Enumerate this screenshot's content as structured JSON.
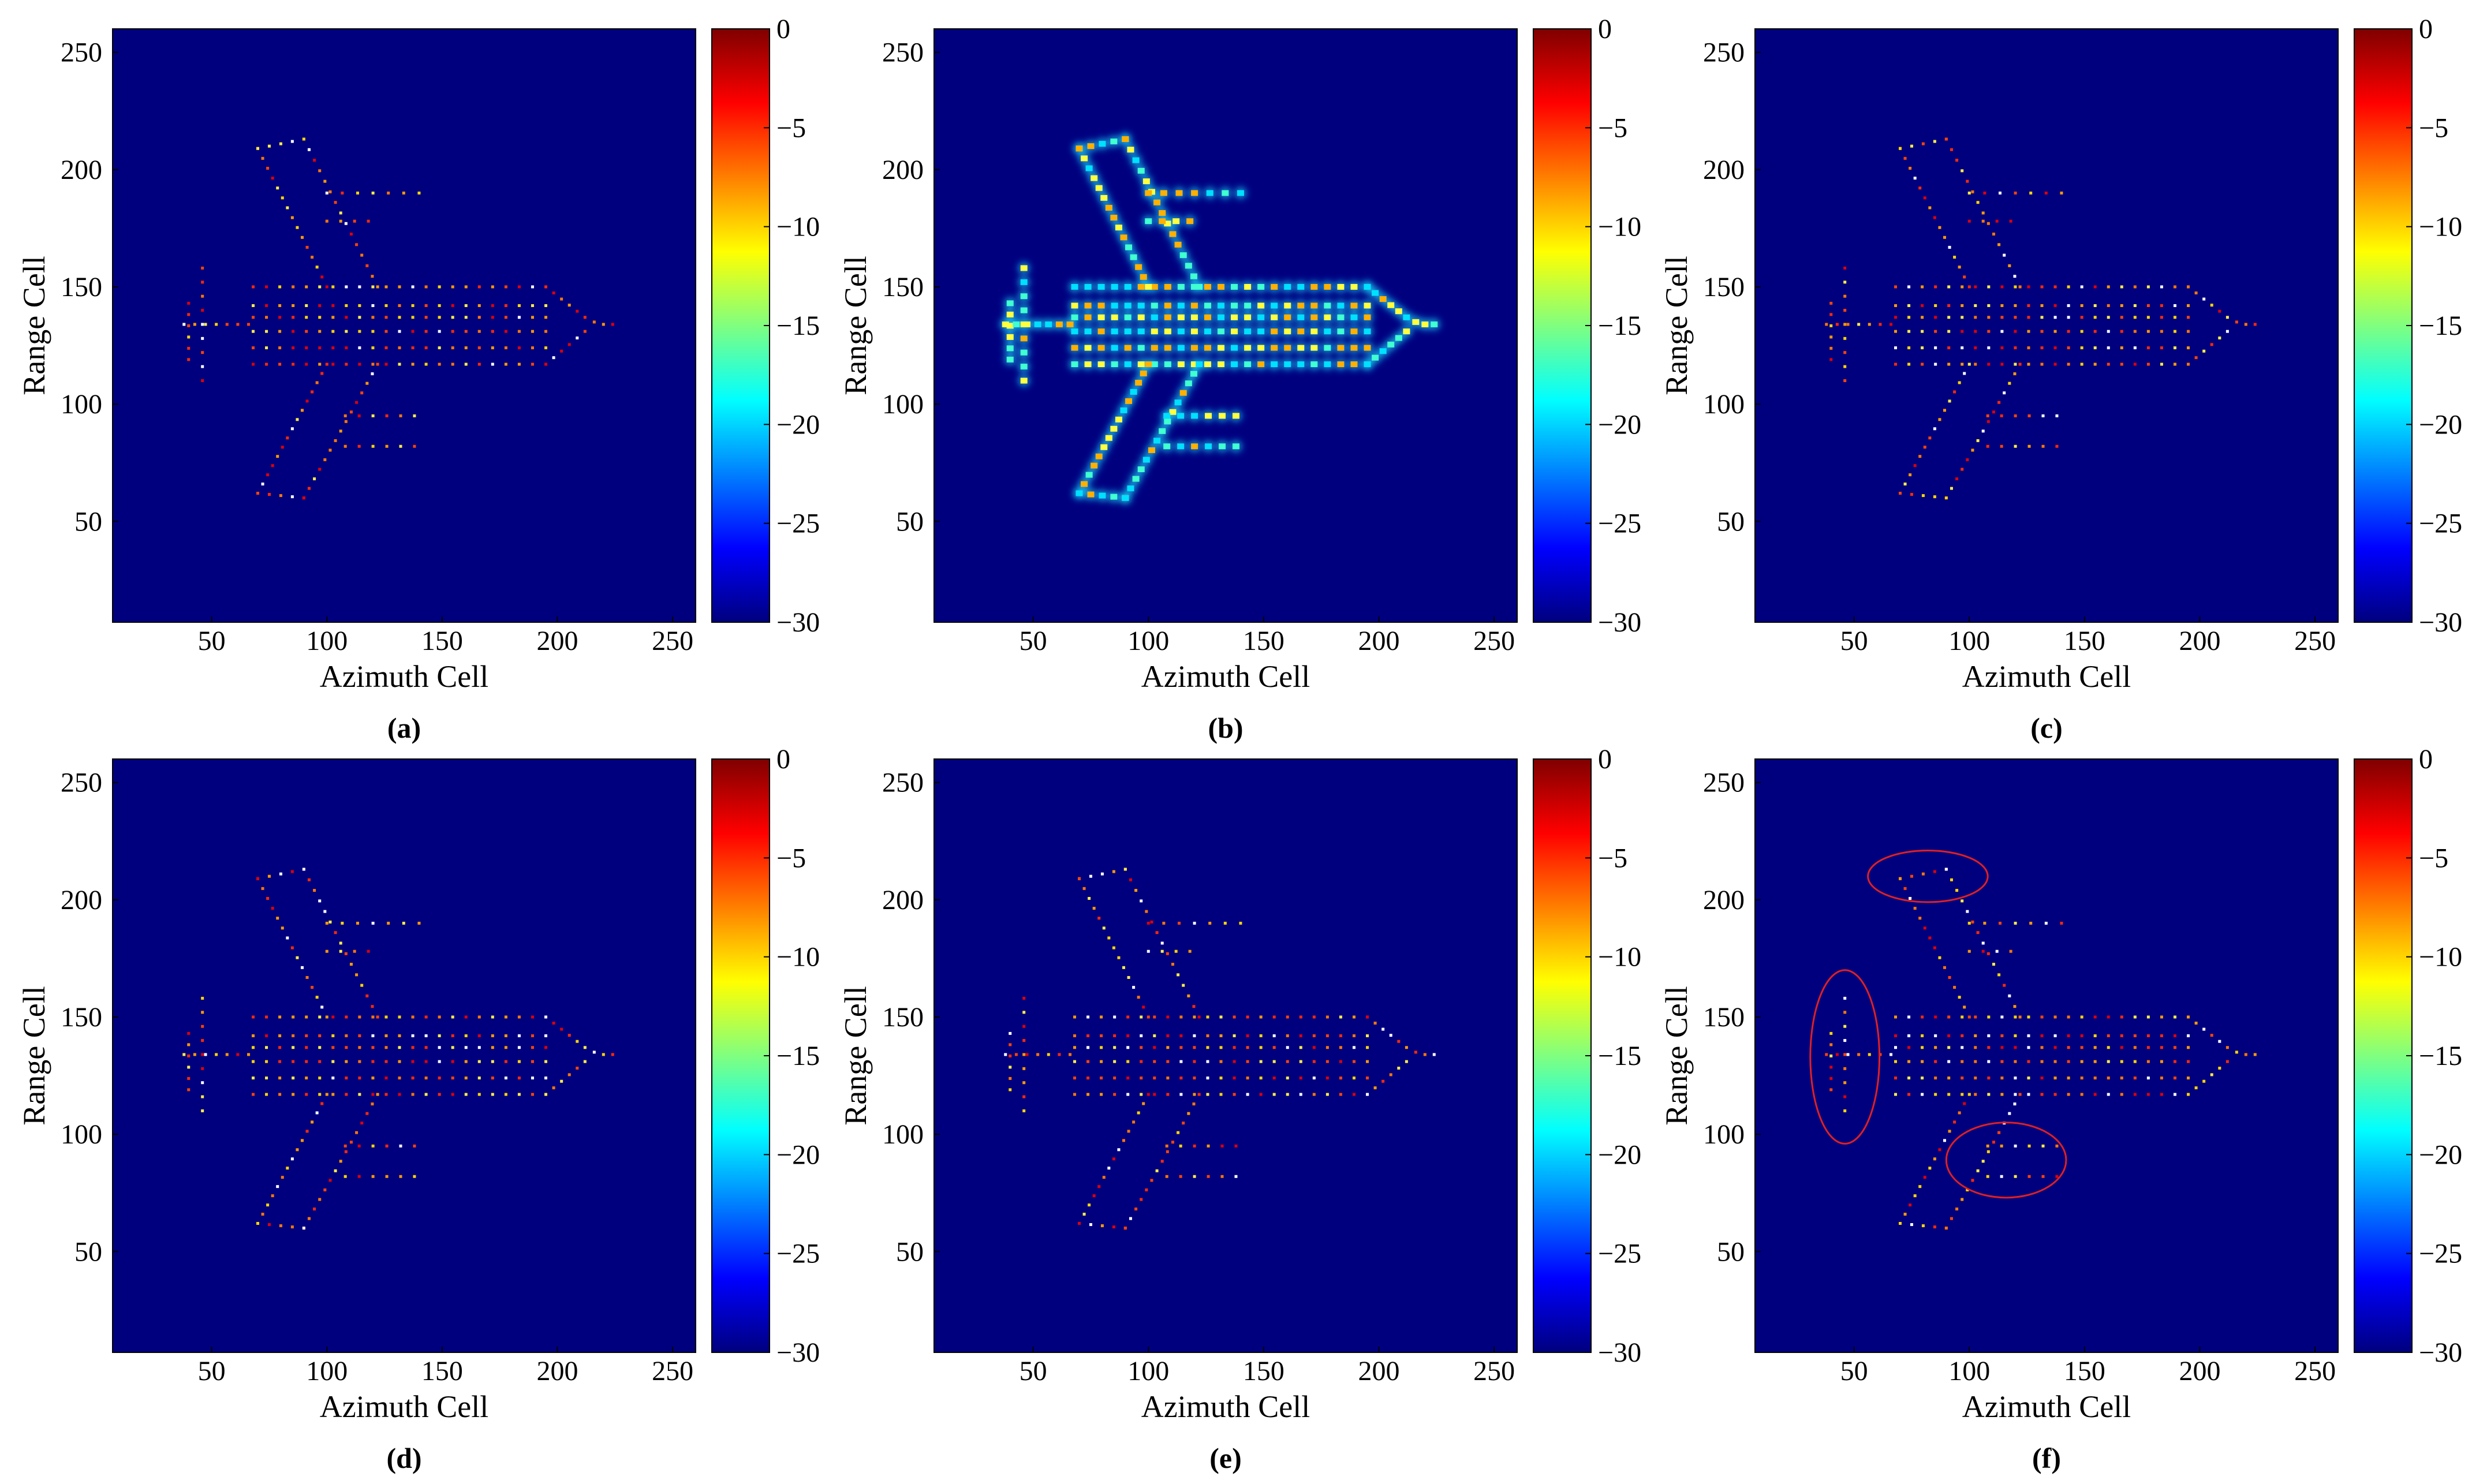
{
  "colors": {
    "background": "#00007f",
    "panel_b_glow": "#1a3fd0",
    "ellipse": "#e02020",
    "colormap_stops": [
      "#00007f",
      "#0000ff",
      "#00ffff",
      "#ffff00",
      "#ff0000",
      "#7f0000"
    ]
  },
  "chart_data": [
    {
      "type": "heatmap",
      "label": "(a)",
      "xlabel": "Azimuth Cell",
      "ylabel": "Range Cell",
      "xlim": [
        7,
        260
      ],
      "ylim": [
        7,
        260
      ],
      "xticks": [
        "50",
        "100",
        "150",
        "200",
        "250"
      ],
      "yticks": [
        "50",
        "100",
        "150",
        "200",
        "250"
      ],
      "colorbar": {
        "range": [
          -30,
          0
        ],
        "ticks": [
          "0",
          "−5",
          "−10",
          "−15",
          "−20",
          "−25",
          "−30"
        ]
      },
      "style": "points"
    },
    {
      "type": "heatmap",
      "label": "(b)",
      "xlabel": "Azimuth Cell",
      "ylabel": "Range Cell",
      "xlim": [
        7,
        260
      ],
      "ylim": [
        7,
        260
      ],
      "xticks": [
        "50",
        "100",
        "150",
        "200",
        "250"
      ],
      "yticks": [
        "50",
        "100",
        "150",
        "200",
        "250"
      ],
      "colorbar": {
        "range": [
          -30,
          0
        ],
        "ticks": [
          "0",
          "−5",
          "−10",
          "−15",
          "−20",
          "−25",
          "−30"
        ]
      },
      "style": "blurred"
    },
    {
      "type": "heatmap",
      "label": "(c)",
      "xlabel": "Azimuth Cell",
      "ylabel": "Range Cell",
      "xlim": [
        7,
        260
      ],
      "ylim": [
        7,
        260
      ],
      "xticks": [
        "50",
        "100",
        "150",
        "200",
        "250"
      ],
      "yticks": [
        "50",
        "100",
        "150",
        "200",
        "250"
      ],
      "colorbar": {
        "range": [
          -30,
          0
        ],
        "ticks": [
          "0",
          "−5",
          "−10",
          "−15",
          "−20",
          "−25",
          "−30"
        ]
      },
      "style": "points"
    },
    {
      "type": "heatmap",
      "label": "(d)",
      "xlabel": "Azimuth Cell",
      "ylabel": "Range Cell",
      "xlim": [
        7,
        260
      ],
      "ylim": [
        7,
        260
      ],
      "xticks": [
        "50",
        "100",
        "150",
        "200",
        "250"
      ],
      "yticks": [
        "50",
        "100",
        "150",
        "200",
        "250"
      ],
      "colorbar": {
        "range": [
          -30,
          0
        ],
        "ticks": [
          "0",
          "−5",
          "−10",
          "−15",
          "−20",
          "−25",
          "−30"
        ]
      },
      "style": "points"
    },
    {
      "type": "heatmap",
      "label": "(e)",
      "xlabel": "Azimuth Cell",
      "ylabel": "Range Cell",
      "xlim": [
        7,
        260
      ],
      "ylim": [
        7,
        260
      ],
      "xticks": [
        "50",
        "100",
        "150",
        "200",
        "250"
      ],
      "yticks": [
        "50",
        "100",
        "150",
        "200",
        "250"
      ],
      "colorbar": {
        "range": [
          -30,
          0
        ],
        "ticks": [
          "0",
          "−5",
          "−10",
          "−15",
          "−20",
          "−25",
          "−30"
        ]
      },
      "style": "points"
    },
    {
      "type": "heatmap",
      "label": "(f)",
      "xlabel": "Azimuth Cell",
      "ylabel": "Range Cell",
      "xlim": [
        7,
        260
      ],
      "ylim": [
        7,
        260
      ],
      "xticks": [
        "50",
        "100",
        "150",
        "200",
        "250"
      ],
      "yticks": [
        "50",
        "100",
        "150",
        "200",
        "250"
      ],
      "colorbar": {
        "range": [
          -30,
          0
        ],
        "ticks": [
          "0",
          "−5",
          "−10",
          "−15",
          "−20",
          "−25",
          "−30"
        ]
      },
      "style": "points",
      "highlight_regions": [
        {
          "center": [
            82,
            210
          ],
          "radii": [
            26,
            11
          ]
        },
        {
          "center": [
            46,
            133
          ],
          "radii": [
            15,
            37
          ]
        },
        {
          "center": [
            116,
            89
          ],
          "radii": [
            26,
            16
          ]
        }
      ]
    }
  ]
}
